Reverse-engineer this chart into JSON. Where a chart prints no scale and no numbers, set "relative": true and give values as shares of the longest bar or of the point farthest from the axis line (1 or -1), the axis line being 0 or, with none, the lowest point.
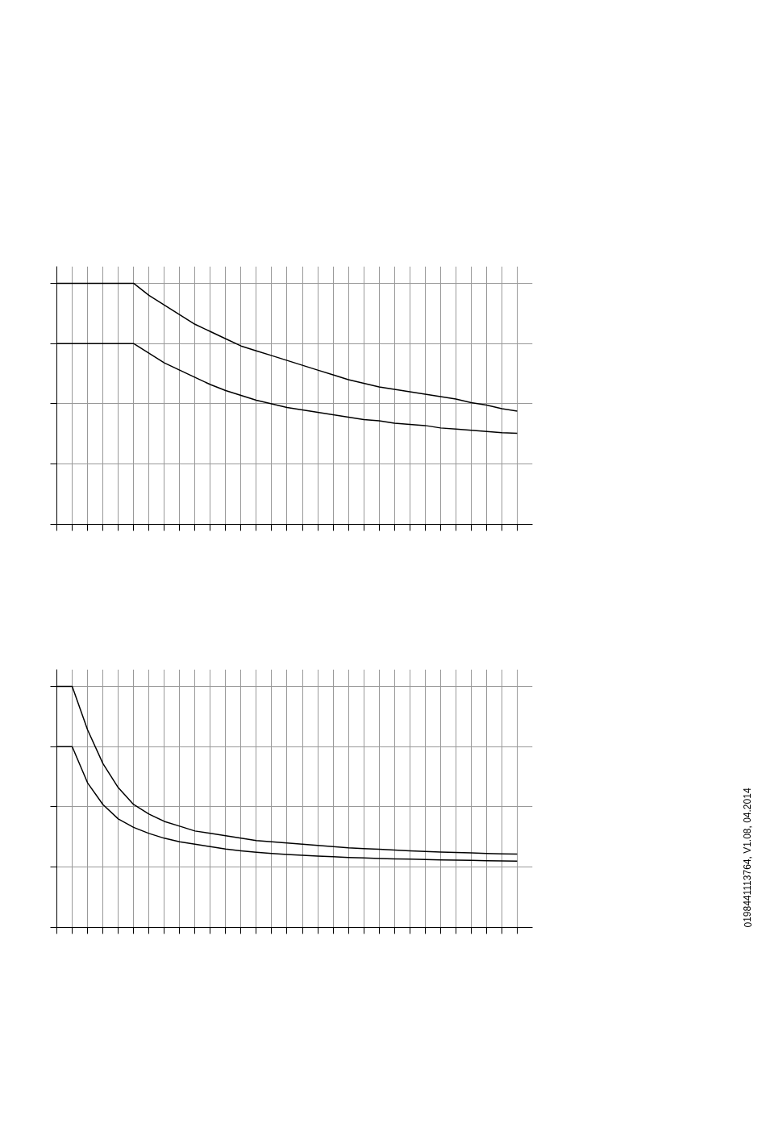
{
  "chart_data": [
    {
      "type": "line",
      "relative": true,
      "grid": true,
      "marker": "none",
      "line_style": "solid",
      "categories": [
        null,
        null,
        null,
        null,
        null,
        null,
        null,
        null,
        null,
        null,
        null,
        null,
        null,
        null,
        null,
        null,
        null,
        null,
        null,
        null,
        null,
        null,
        null,
        null,
        null,
        null,
        null,
        null,
        null,
        null,
        null
      ],
      "series": [
        {
          "color": "#000000",
          "values": [
            1,
            1,
            1,
            1,
            1,
            1,
            0.95,
            0.91,
            0.87,
            0.83,
            0.8,
            0.77,
            0.74,
            0.72,
            0.7,
            0.68,
            0.66,
            0.64,
            0.62,
            0.6,
            0.585,
            0.57,
            0.56,
            0.55,
            0.54,
            0.53,
            0.52,
            0.505,
            0.495,
            0.48,
            0.47
          ]
        },
        {
          "color": "#000000",
          "values": [
            0.75,
            0.75,
            0.75,
            0.75,
            0.75,
            0.75,
            0.71,
            0.67,
            0.64,
            0.61,
            0.58,
            0.555,
            0.535,
            0.515,
            0.5,
            0.485,
            0.475,
            0.465,
            0.455,
            0.445,
            0.435,
            0.43,
            0.42,
            0.415,
            0.41,
            0.4,
            0.395,
            0.39,
            0.385,
            0.38,
            0.378
          ]
        }
      ]
    },
    {
      "type": "line",
      "relative": true,
      "grid": true,
      "marker": "none",
      "line_style": "solid",
      "categories": [
        null,
        null,
        null,
        null,
        null,
        null,
        null,
        null,
        null,
        null,
        null,
        null,
        null,
        null,
        null,
        null,
        null,
        null,
        null,
        null,
        null,
        null,
        null,
        null,
        null,
        null,
        null,
        null,
        null,
        null,
        null
      ],
      "annotations": [
        "0198441113764, V1.08, 04.2014"
      ],
      "series": [
        {
          "color": "#000000",
          "values": [
            1,
            1,
            0.82,
            0.68,
            0.58,
            0.51,
            0.47,
            0.44,
            0.42,
            0.4,
            0.39,
            0.38,
            0.37,
            0.36,
            0.355,
            0.35,
            0.345,
            0.34,
            0.335,
            0.33,
            0.327,
            0.324,
            0.321,
            0.318,
            0.315,
            0.313,
            0.311,
            0.309,
            0.307,
            0.305,
            0.304
          ]
        },
        {
          "color": "#000000",
          "values": [
            0.75,
            0.75,
            0.6,
            0.51,
            0.45,
            0.415,
            0.39,
            0.37,
            0.355,
            0.345,
            0.335,
            0.325,
            0.318,
            0.312,
            0.307,
            0.303,
            0.299,
            0.296,
            0.293,
            0.29,
            0.288,
            0.286,
            0.284,
            0.283,
            0.282,
            0.28,
            0.279,
            0.278,
            0.277,
            0.276,
            0.275
          ]
        }
      ]
    }
  ]
}
